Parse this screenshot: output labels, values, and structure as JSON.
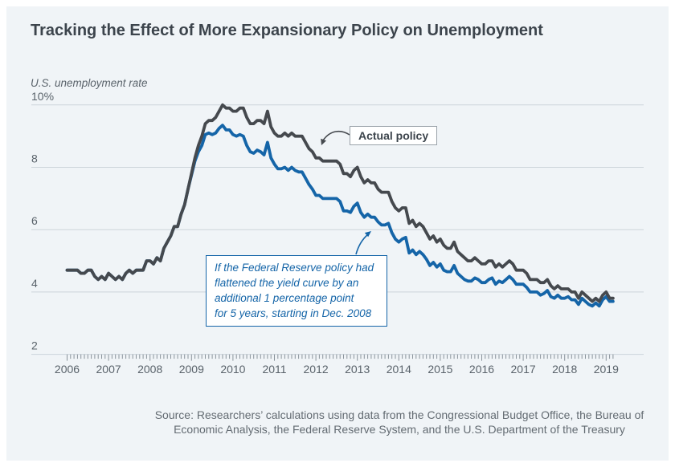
{
  "title": "Tracking the Effect of More Expansionary Policy on Unemployment",
  "annotations": {
    "actual_label": "Actual policy",
    "counterfactual_text": "If the Federal Reserve policy had\nflattened the yield curve by an\nadditional 1 percentage point\nfor 5 years, starting in Dec. 2008"
  },
  "source": "Source: Researchers’ calculations using data from the Congressional Budget Office, the Bureau of\nEconomic Analysis, the Federal Reserve System, and the U.S. Department of the Treasury",
  "colors": {
    "background": "#ffffff",
    "panel": "#f0f4f7",
    "title_text": "#3c444c",
    "grid": "#ccd4da",
    "axis": "#8a939b",
    "tick_text": "#5a636b",
    "actual_line": "#45494e",
    "counterfactual_line": "#1565a8",
    "callout_border": "#9aa2a9",
    "source_text": "#636b72"
  },
  "chart_data": {
    "type": "line",
    "title": "Tracking the Effect of More Expansionary Policy on Unemployment",
    "ylabel": "U.S. unemployment rate",
    "xlabel": "",
    "ylim": [
      2,
      10
    ],
    "yticks": [
      2,
      4,
      6,
      8,
      10
    ],
    "ytick_labels": [
      "2",
      "4",
      "6",
      "8",
      "10%"
    ],
    "x_start": 2006,
    "x_step": "monthly",
    "xtick_labels": [
      "2006",
      "2007",
      "2008",
      "2009",
      "2010",
      "2011",
      "2012",
      "2013",
      "2014",
      "2015",
      "2016",
      "2017",
      "2018",
      "2019"
    ],
    "grid": "horizontal",
    "legend_position": "annotated callouts",
    "series": [
      {
        "name": "Actual policy",
        "color": "#45494e",
        "values": [
          4.7,
          4.7,
          4.7,
          4.7,
          4.6,
          4.6,
          4.7,
          4.7,
          4.5,
          4.4,
          4.5,
          4.4,
          4.6,
          4.5,
          4.4,
          4.5,
          4.4,
          4.6,
          4.7,
          4.6,
          4.7,
          4.7,
          4.7,
          5.0,
          5.0,
          4.9,
          5.1,
          5.0,
          5.4,
          5.6,
          5.8,
          6.1,
          6.1,
          6.5,
          6.8,
          7.3,
          7.8,
          8.3,
          8.7,
          9.0,
          9.4,
          9.5,
          9.5,
          9.6,
          9.8,
          10.0,
          9.9,
          9.9,
          9.8,
          9.8,
          9.9,
          9.9,
          9.6,
          9.4,
          9.4,
          9.5,
          9.5,
          9.4,
          9.8,
          9.3,
          9.1,
          9.0,
          9.0,
          9.1,
          9.0,
          9.1,
          9.0,
          9.0,
          9.0,
          8.8,
          8.6,
          8.5,
          8.3,
          8.3,
          8.2,
          8.2,
          8.2,
          8.2,
          8.2,
          8.1,
          7.8,
          7.8,
          7.7,
          7.9,
          8.0,
          7.7,
          7.5,
          7.6,
          7.5,
          7.5,
          7.3,
          7.2,
          7.2,
          7.2,
          6.9,
          6.7,
          6.6,
          6.7,
          6.7,
          6.2,
          6.3,
          6.1,
          6.2,
          6.1,
          5.9,
          5.7,
          5.8,
          5.6,
          5.7,
          5.5,
          5.4,
          5.4,
          5.6,
          5.3,
          5.2,
          5.1,
          5.0,
          5.0,
          5.1,
          5.0,
          4.9,
          4.9,
          5.0,
          5.0,
          4.8,
          4.9,
          4.8,
          4.9,
          5.0,
          4.9,
          4.7,
          4.7,
          4.7,
          4.6,
          4.4,
          4.4,
          4.4,
          4.3,
          4.3,
          4.4,
          4.2,
          4.1,
          4.2,
          4.1,
          4.1,
          4.1,
          4.0,
          4.0,
          3.8,
          4.0,
          3.9,
          3.8,
          3.7,
          3.8,
          3.7,
          3.9,
          4.0,
          3.8,
          3.8
        ]
      },
      {
        "name": "If the Federal Reserve policy had flattened the yield curve by an additional 1 percentage point for 5 years, starting in Dec. 2008",
        "color": "#1565a8",
        "values": [
          4.7,
          4.7,
          4.7,
          4.7,
          4.6,
          4.6,
          4.7,
          4.7,
          4.5,
          4.4,
          4.5,
          4.4,
          4.6,
          4.5,
          4.4,
          4.5,
          4.4,
          4.6,
          4.7,
          4.6,
          4.7,
          4.7,
          4.7,
          5.0,
          5.0,
          4.9,
          5.1,
          5.0,
          5.4,
          5.6,
          5.8,
          6.1,
          6.1,
          6.5,
          6.8,
          7.3,
          7.75,
          8.2,
          8.5,
          8.7,
          9.05,
          9.1,
          9.05,
          9.1,
          9.25,
          9.35,
          9.2,
          9.2,
          9.05,
          9.0,
          9.05,
          9.0,
          8.7,
          8.5,
          8.45,
          8.55,
          8.5,
          8.4,
          8.8,
          8.3,
          8.1,
          7.95,
          7.95,
          8.0,
          7.9,
          8.0,
          7.9,
          7.85,
          7.85,
          7.65,
          7.45,
          7.3,
          7.1,
          7.1,
          7.0,
          7.0,
          7.0,
          7.0,
          7.0,
          6.9,
          6.6,
          6.6,
          6.55,
          6.75,
          6.85,
          6.55,
          6.4,
          6.5,
          6.4,
          6.4,
          6.25,
          6.15,
          6.15,
          6.2,
          5.9,
          5.7,
          5.6,
          5.7,
          5.75,
          5.25,
          5.35,
          5.2,
          5.3,
          5.2,
          5.05,
          4.85,
          4.95,
          4.8,
          4.9,
          4.7,
          4.65,
          4.65,
          4.85,
          4.6,
          4.5,
          4.4,
          4.35,
          4.35,
          4.45,
          4.4,
          4.3,
          4.3,
          4.4,
          4.45,
          4.25,
          4.35,
          4.3,
          4.4,
          4.5,
          4.4,
          4.25,
          4.25,
          4.25,
          4.15,
          4.0,
          4.0,
          4.0,
          3.9,
          3.95,
          4.05,
          3.85,
          3.8,
          3.9,
          3.8,
          3.8,
          3.85,
          3.75,
          3.75,
          3.6,
          3.8,
          3.7,
          3.6,
          3.55,
          3.65,
          3.55,
          3.75,
          3.85,
          3.7,
          3.7
        ]
      }
    ]
  }
}
